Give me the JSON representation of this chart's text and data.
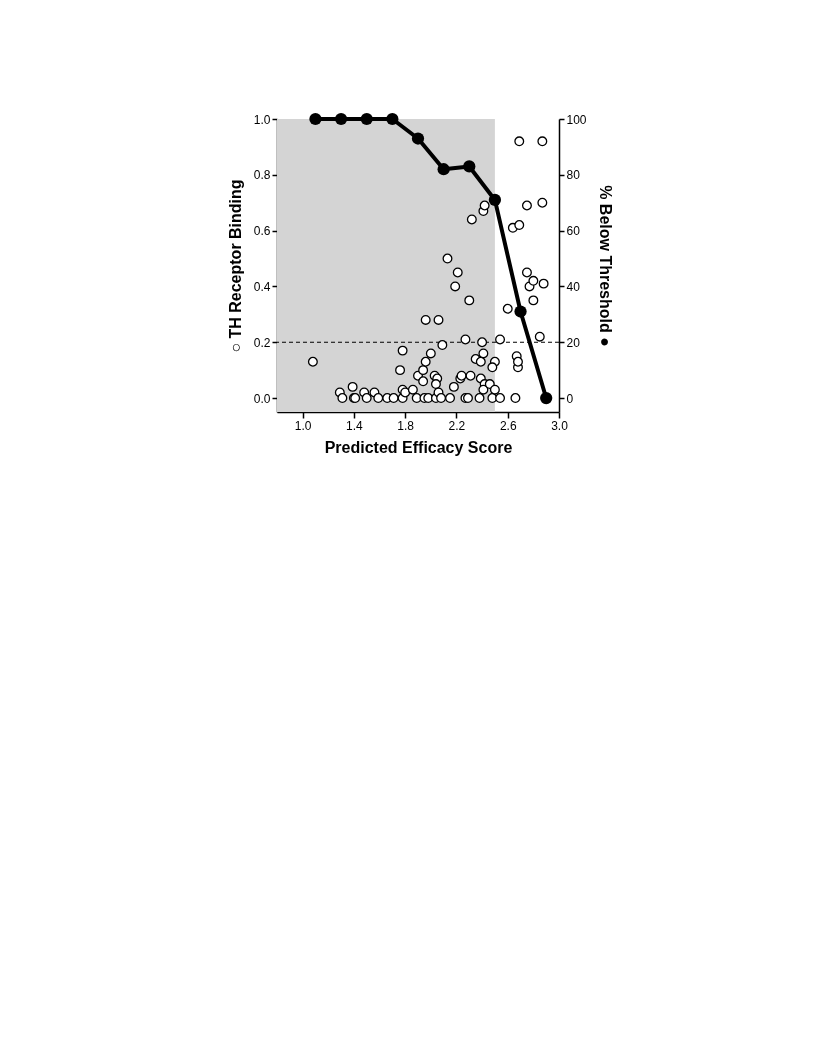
{
  "chart_data": {
    "type": "scatter",
    "xlabel": "Predicted Efficacy Score",
    "ylabel": "○ TH Receptor Binding",
    "y2label": "% Below Threshold ●",
    "xlim": [
      0.8,
      3.0
    ],
    "ylim": [
      -0.05,
      1.0
    ],
    "y2lim": [
      -5,
      100
    ],
    "xticks": [
      {
        "value": 1.0,
        "label": "1.0"
      },
      {
        "value": 1.4,
        "label": "1.4"
      },
      {
        "value": 1.8,
        "label": "1.8"
      },
      {
        "value": 2.2,
        "label": "2.2"
      },
      {
        "value": 2.6,
        "label": "2.6"
      },
      {
        "value": 3.0,
        "label": "3.0"
      }
    ],
    "yticks": [
      {
        "value": 0,
        "label": "0.0"
      },
      {
        "value": 0.2,
        "label": "0.2"
      },
      {
        "value": 0.4,
        "label": "0.4"
      },
      {
        "value": 0.6,
        "label": "0.6"
      },
      {
        "value": 0.8,
        "label": "0.8"
      },
      {
        "value": 1.0,
        "label": "1.0"
      }
    ],
    "y2ticks": [
      0,
      20,
      40,
      60,
      80,
      100
    ],
    "grid": false,
    "bands": [
      {
        "axis": "x",
        "from": 0.8,
        "to": 2.5,
        "color": "#d4d4d4"
      }
    ],
    "ref_lines": [
      {
        "axis": "y",
        "value": 0.2,
        "line_style": "dashed",
        "color": "#000000"
      }
    ],
    "series": [
      {
        "color": "#000000",
        "marker": "circle",
        "x": [
          1.08,
          1.29,
          1.31,
          1.39,
          1.4,
          1.41,
          1.48,
          1.5,
          1.56,
          1.59,
          1.66,
          1.71,
          1.78,
          1.76,
          1.78,
          1.78,
          1.8,
          1.86,
          1.89,
          1.95,
          1.98,
          2.04,
          1.9,
          1.94,
          1.96,
          1.94,
          1.96,
          2.0,
          2.06,
          2.09,
          2.03,
          2.05,
          2.04,
          2.06,
          2.08,
          2.15,
          2.18,
          2.23,
          2.24,
          2.27,
          2.29,
          2.38,
          2.48,
          2.54,
          2.27,
          2.31,
          2.35,
          2.39,
          2.4,
          2.41,
          2.39,
          2.42,
          2.41,
          2.46,
          2.5,
          2.5,
          2.48,
          2.54,
          2.6,
          2.66,
          2.67,
          2.68,
          2.68,
          2.85,
          2.69,
          2.87,
          2.87,
          2.75,
          2.64,
          2.69,
          2.32,
          2.41,
          2.42,
          2.13,
          2.21,
          2.19,
          2.3,
          2.75,
          2.77,
          2.8,
          2.8,
          2.88
        ],
        "values": [
          0.13,
          0.02,
          0,
          0.04,
          0,
          0,
          0.02,
          0,
          0.02,
          0,
          0,
          0,
          0,
          0.1,
          0.17,
          0.03,
          0.02,
          0.03,
          0,
          0,
          0,
          0,
          0.08,
          0.1,
          0.13,
          0.06,
          0.28,
          0.16,
          0.28,
          0.19,
          0.08,
          0.07,
          0.05,
          0.02,
          0,
          0,
          0.04,
          0.07,
          0.08,
          0,
          0,
          0,
          0,
          0,
          0.21,
          0.08,
          0.14,
          0.13,
          0.2,
          0.16,
          0.07,
          0.05,
          0.03,
          0.05,
          0.03,
          0.13,
          0.11,
          0.21,
          0.32,
          0,
          0.15,
          0.11,
          0.13,
          0.22,
          0.92,
          0.92,
          0.7,
          0.69,
          0.61,
          0.62,
          0.64,
          0.67,
          0.69,
          0.5,
          0.45,
          0.4,
          0.35,
          0.45,
          0.4,
          0.42,
          0.35,
          0.41
        ]
      },
      {
        "type": "line",
        "axis": "y2",
        "color": "#000000",
        "marker": "circle",
        "x": [
          1.1,
          1.3,
          1.5,
          1.7,
          1.9,
          2.1,
          2.3,
          2.5,
          2.7,
          2.9
        ],
        "values": [
          100,
          100,
          100,
          100,
          93,
          82,
          83,
          71,
          31,
          0
        ]
      }
    ]
  }
}
